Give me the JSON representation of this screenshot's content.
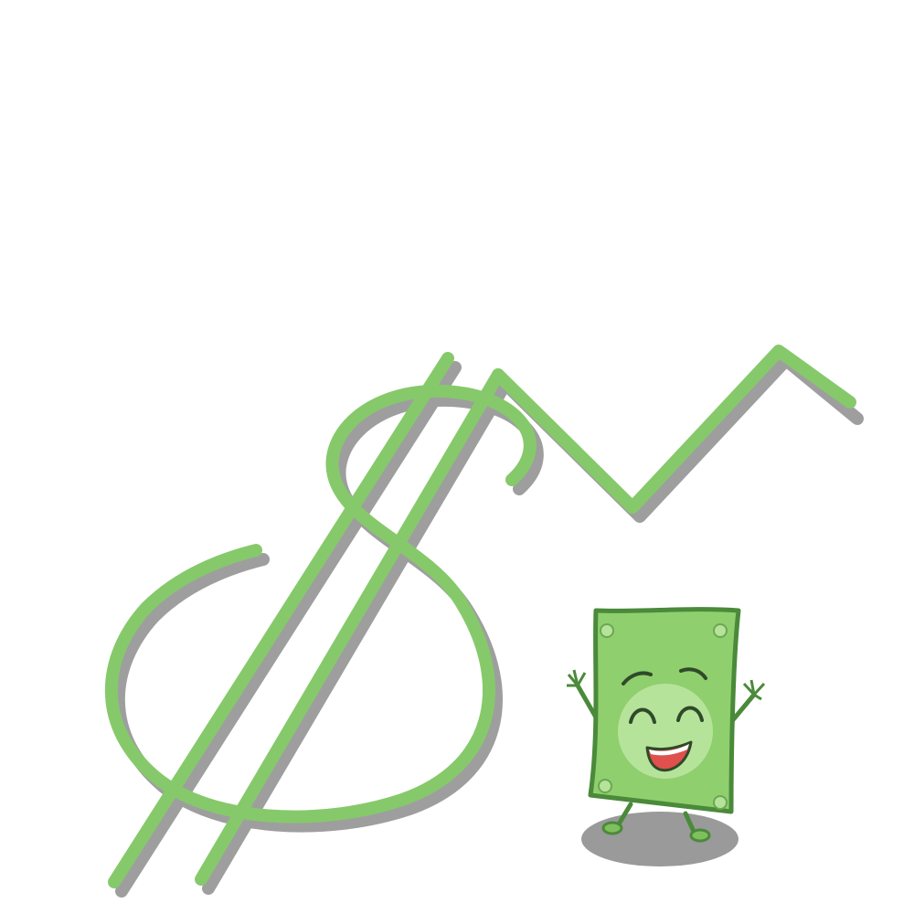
{
  "colors": {
    "background": "#ffffff",
    "stroke_green": "#86c96b",
    "shadow_gray": "#9e9e9e",
    "bill_green": "#8fcf6e",
    "bill_border": "#4a8a3a",
    "bill_face": "#b6e39a",
    "mouth_red": "#e0504d",
    "ground_shadow": "#9a9a9a"
  },
  "icons": {
    "dollar": "dollar-sign-icon",
    "trend": "rising-zigzag-arrow-icon",
    "mascot": "happy-dollar-bill-mascot"
  }
}
